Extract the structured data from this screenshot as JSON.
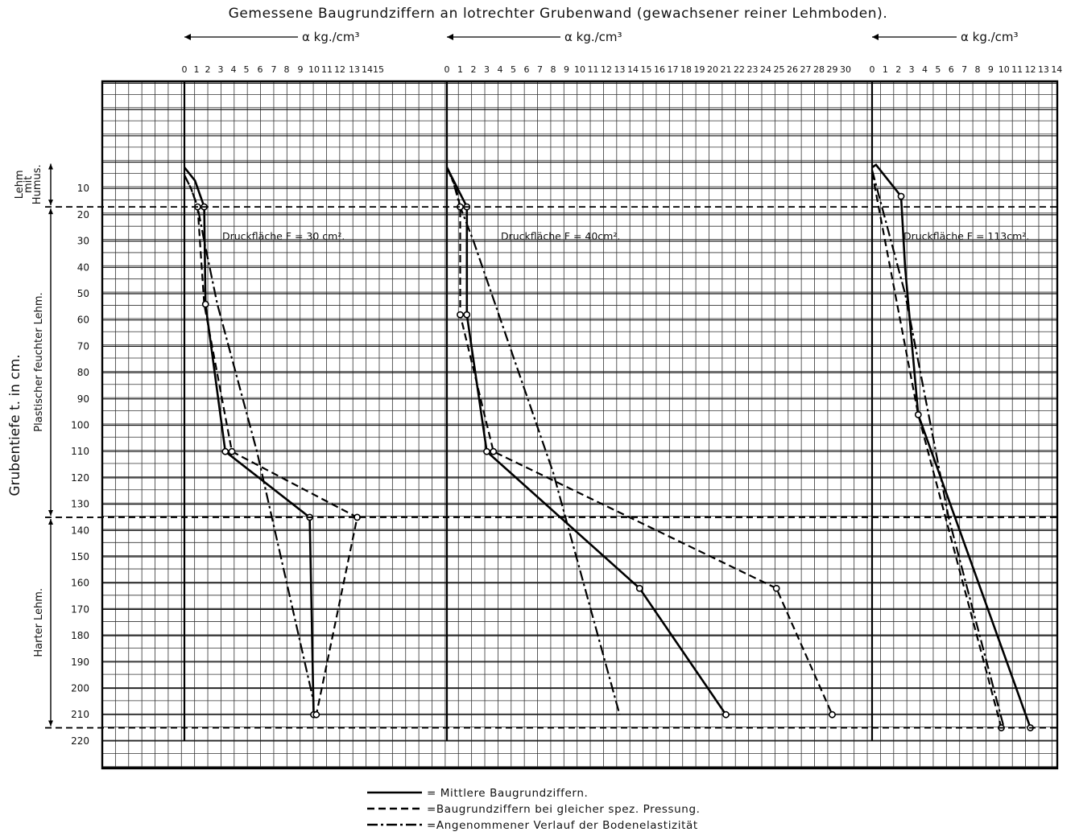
{
  "chart_data": {
    "type": "line",
    "title": "Gemessene Baugrundziffern an lotrechter Grubenwand (gewachsener reiner Lehmboden).",
    "ylabel": "Grubentiefe t. in cm.",
    "y_ticks": [
      10,
      20,
      30,
      40,
      50,
      60,
      70,
      80,
      90,
      100,
      110,
      120,
      130,
      140,
      150,
      160,
      170,
      180,
      190,
      200,
      210,
      220
    ],
    "y_inverted": true,
    "grid": true,
    "layers": [
      {
        "label": "Lehm mit Humus.",
        "from": 0,
        "to": 17
      },
      {
        "label": "Plastischer feuchter Lehm.",
        "from": 17,
        "to": 135
      },
      {
        "label": "Harter Lehm.",
        "from": 135,
        "to": 215
      }
    ],
    "layer_boundaries": [
      17,
      135,
      215
    ],
    "legend": [
      {
        "style": "solid",
        "label": "= Mittlere Baugrundziffern."
      },
      {
        "style": "dashed",
        "label": "=Baugrundziffern bei gleicher spez. Pressung."
      },
      {
        "style": "dashdot",
        "label": "=Angenommener Verlauf der Bodenelastizität"
      }
    ],
    "panels": [
      {
        "xlabel": "α kg./cm³",
        "x_ticks": [
          0,
          1,
          2,
          3,
          4,
          5,
          6,
          7,
          8,
          9,
          10,
          11,
          12,
          13,
          14,
          15
        ],
        "xlim": [
          0,
          15
        ],
        "annotation": "Druckfläche F = 30 cm².",
        "series": [
          {
            "style": "solid",
            "points": [
              [
                0,
                2
              ],
              [
                0.8,
                7
              ],
              [
                1.5,
                17
              ],
              [
                1.6,
                54
              ],
              [
                3.1,
                110
              ],
              [
                9.5,
                135
              ],
              [
                9.8,
                210
              ]
            ]
          },
          {
            "style": "dashed",
            "points": [
              [
                0,
                5
              ],
              [
                0.5,
                10
              ],
              [
                1,
                17
              ],
              [
                1.5,
                54
              ],
              [
                3.6,
                110
              ],
              [
                13.1,
                135
              ],
              [
                10,
                210
              ]
            ]
          },
          {
            "style": "dashdot",
            "points": [
              [
                0,
                5
              ],
              [
                0.5,
                10
              ],
              [
                1,
                17
              ],
              [
                1.5,
                30
              ],
              [
                2.5,
                54
              ],
              [
                5.5,
                110
              ],
              [
                9.8,
                205
              ]
            ]
          }
        ],
        "markers": [
          [
            1.5,
            17
          ],
          [
            1,
            17
          ],
          [
            1.6,
            54
          ],
          [
            3.1,
            110
          ],
          [
            3.6,
            110
          ],
          [
            9.5,
            135
          ],
          [
            13.1,
            135
          ],
          [
            9.8,
            210
          ],
          [
            10,
            210
          ]
        ]
      },
      {
        "xlabel": "α kg./cm³",
        "x_ticks": [
          0,
          1,
          2,
          3,
          4,
          5,
          6,
          7,
          8,
          9,
          10,
          11,
          12,
          13,
          14,
          15,
          16,
          17,
          18,
          19,
          20,
          21,
          22,
          23,
          24,
          25,
          26,
          27,
          28,
          29,
          30
        ],
        "xlim": [
          0,
          30
        ],
        "annotation": "Druckfläche F = 40cm².",
        "series": [
          {
            "style": "solid",
            "points": [
              [
                0,
                2
              ],
              [
                0.8,
                10
              ],
              [
                1.5,
                17
              ],
              [
                1.5,
                58
              ],
              [
                3,
                110
              ],
              [
                14.5,
                162
              ],
              [
                21,
                210
              ]
            ]
          },
          {
            "style": "dashed",
            "points": [
              [
                0,
                2
              ],
              [
                0.7,
                10
              ],
              [
                1,
                17
              ],
              [
                1,
                58
              ],
              [
                3.5,
                110
              ],
              [
                24.8,
                162
              ],
              [
                29,
                210
              ]
            ]
          },
          {
            "style": "dashdot",
            "points": [
              [
                0,
                2
              ],
              [
                0.5,
                8
              ],
              [
                1,
                17
              ],
              [
                2,
                30
              ],
              [
                8,
                118
              ],
              [
                13,
                210
              ]
            ]
          }
        ],
        "markers": [
          [
            1.5,
            17
          ],
          [
            1,
            17
          ],
          [
            1.5,
            58
          ],
          [
            1,
            58
          ],
          [
            3,
            110
          ],
          [
            3.5,
            110
          ],
          [
            14.5,
            162
          ],
          [
            24.8,
            162
          ],
          [
            21,
            210
          ],
          [
            29,
            210
          ]
        ]
      },
      {
        "xlabel": "α kg./cm³",
        "x_ticks": [
          0,
          1,
          2,
          3,
          4,
          5,
          6,
          7,
          8,
          9,
          10,
          11,
          12,
          13,
          14
        ],
        "xlim": [
          0,
          14
        ],
        "annotation": "Druckfläche F = 113cm².",
        "series": [
          {
            "style": "solid",
            "points": [
              [
                0,
                2
              ],
              [
                0.3,
                1
              ],
              [
                2.2,
                13
              ],
              [
                2.5,
                40
              ],
              [
                3.5,
                96
              ],
              [
                12,
                215
              ]
            ]
          },
          {
            "style": "dashed",
            "points": [
              [
                0,
                4
              ],
              [
                3.5,
                96
              ],
              [
                9.8,
                215
              ]
            ]
          },
          {
            "style": "dashdot",
            "points": [
              [
                0,
                3
              ],
              [
                2.5,
                50
              ],
              [
                5.8,
                135
              ],
              [
                10,
                215
              ]
            ]
          }
        ],
        "markers": [
          [
            2.2,
            13
          ],
          [
            3.5,
            96
          ],
          [
            9.8,
            215
          ],
          [
            12,
            215
          ]
        ]
      }
    ]
  }
}
